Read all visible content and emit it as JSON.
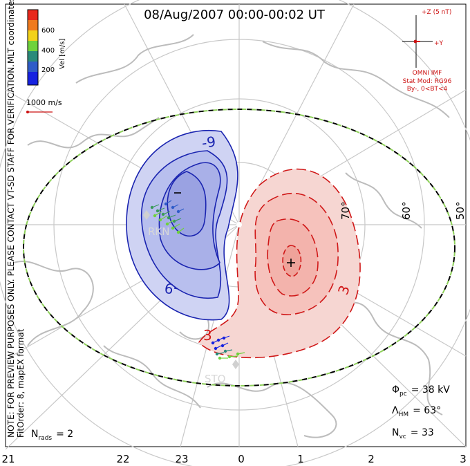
{
  "title": "08/Aug/2007 00:00-00:02 UT",
  "colorbar": {
    "label": "Vel [m/s]",
    "ticks": [
      "600",
      "400",
      "200"
    ],
    "colors": [
      "#e8281c",
      "#f07a1e",
      "#f2d21a",
      "#6fd23c",
      "#2a8a7a",
      "#2f5cc8",
      "#1622e0"
    ]
  },
  "coord_label": "MLT coordinates",
  "note_line1": "NOTE: FOR PREVIEW PURPOSES ONLY. PLEASE CONTACT VT-SD STAFF FOR VERIFICATION.",
  "note_line2": "FitOrder: 8, mapEX format",
  "vector_scale": "1000 m/s",
  "imf": {
    "plus_z": "+Z (5 nT)",
    "plus_y": "+Y",
    "source": "OMNI IMF",
    "stat_mod": "Stat Mod: RG96",
    "condition": "By-, 0<BT<4"
  },
  "latitude_labels": [
    "70°",
    "60°",
    "50°"
  ],
  "contours": {
    "negative_label": "-9",
    "positive_label": "3"
  },
  "stations": [
    "RKN",
    "STO"
  ],
  "stats": {
    "phi_pc_label": "Φ",
    "phi_pc_sub": "pc",
    "phi_pc_value": "= 38 kV",
    "lambda_hm_label": "Λ",
    "lambda_hm_sub": "HM",
    "lambda_hm_value": "= 63°",
    "nvc_label": "N",
    "nvc_sub": "vc",
    "nvc_value": "= 33",
    "nrads_label": "N",
    "nrads_sub": "rads",
    "nrads_value": "= 2"
  },
  "mlt_axis": [
    "21",
    "22",
    "23",
    "0",
    "1",
    "2",
    "3"
  ],
  "colors": {
    "negative_line": "#1a24b0",
    "negative_fill": "#b8bfee",
    "positive_line": "#d01818",
    "positive_fill": "#f6c2bc",
    "coast": "#bcbcbc",
    "grid": "#c8c8c8",
    "boundary_green": "#8ed05a"
  }
}
